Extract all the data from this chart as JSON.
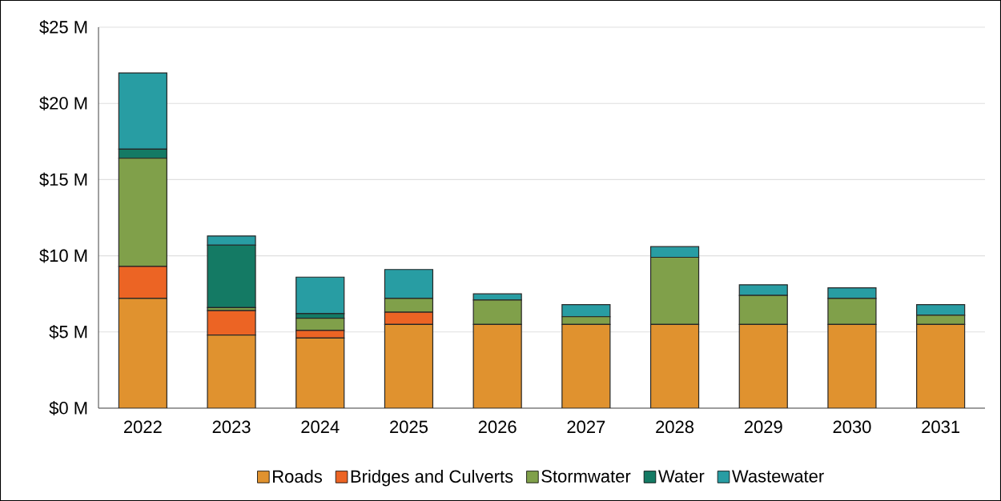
{
  "chart_data": {
    "type": "bar",
    "stacked": true,
    "grid": "y",
    "legend": "bottom",
    "categories": [
      "2022",
      "2023",
      "2024",
      "2025",
      "2026",
      "2027",
      "2028",
      "2029",
      "2030",
      "2031"
    ],
    "ylim": [
      0,
      25
    ],
    "yticks": [
      {
        "value": 0,
        "label": "$0 M"
      },
      {
        "value": 5,
        "label": "$5 M"
      },
      {
        "value": 10,
        "label": "$10 M"
      },
      {
        "value": 15,
        "label": "$15 M"
      },
      {
        "value": 20,
        "label": "$20 M"
      },
      {
        "value": 25,
        "label": "$25 M"
      }
    ],
    "series": [
      {
        "name": "Roads",
        "color": "#e0922f",
        "values": [
          7.2,
          4.8,
          4.6,
          5.5,
          5.5,
          5.5,
          5.5,
          5.5,
          5.5,
          5.5
        ]
      },
      {
        "name": "Bridges and Culverts",
        "color": "#ec6424",
        "values": [
          2.1,
          1.6,
          0.5,
          0.8,
          0,
          0,
          0,
          0,
          0,
          0
        ]
      },
      {
        "name": "Stormwater",
        "color": "#80a04a",
        "values": [
          7.1,
          0.2,
          0.8,
          0.9,
          1.6,
          0.5,
          4.4,
          1.9,
          1.7,
          0.6
        ]
      },
      {
        "name": "Water",
        "color": "#147a64",
        "values": [
          0.6,
          4.1,
          0.3,
          0,
          0,
          0,
          0,
          0,
          0,
          0
        ]
      },
      {
        "name": "Wastewater",
        "color": "#289da3",
        "values": [
          5.0,
          0.6,
          2.4,
          1.9,
          0.4,
          0.8,
          0.7,
          0.7,
          0.7,
          0.7
        ]
      }
    ]
  }
}
